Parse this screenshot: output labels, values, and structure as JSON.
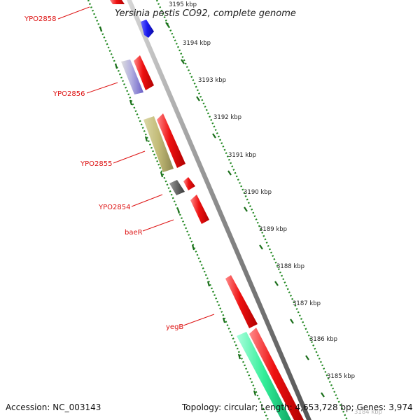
{
  "title": "Yersinia pestis CO92, complete genome",
  "footer": {
    "accession": "Accession: NC_003143",
    "summary": "Topology: circular; Length: 4,653,728 bp; Genes: 3,974"
  },
  "scale_labels": [
    "3195 kbp",
    "3194 kbp",
    "3193 kbp",
    "3192 kbp",
    "3191 kbp",
    "3190 kbp",
    "3189 kbp",
    "3188 kbp",
    "3187 kbp",
    "3186 kbp",
    "3185 kbp",
    "3184 kbp"
  ],
  "gene_labels": [
    "YPO2858",
    "YPO2856",
    "YPO2855",
    "YPO2854",
    "baeR",
    "yegB"
  ],
  "colors": {
    "backbone": "#8a8a8a",
    "ruler": "#228822",
    "gene_label": "#dd1111",
    "forward_cds": "#ee1111",
    "reverse_cds": "#1a1aee",
    "green_feature": "#33ee99",
    "olive_feature": "#c2bb77",
    "gray_feature": "#666666",
    "lavender_feature": "#9a8fd8"
  }
}
